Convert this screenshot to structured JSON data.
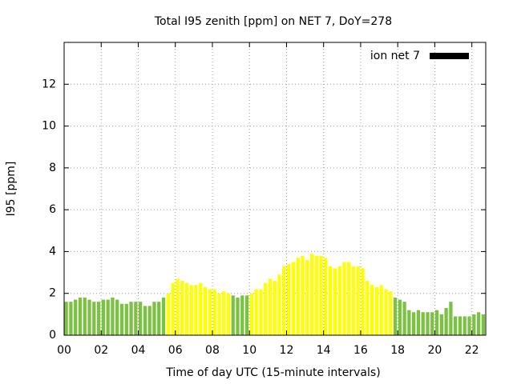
{
  "chart_data": {
    "type": "bar",
    "title": "Total I95 zenith [ppm] on NET 7, DoY=278",
    "xlabel": "Time of day UTC (15-minute intervals)",
    "ylabel": "I95 [ppm]",
    "series": [
      {
        "name": "ion net 7",
        "color": "#000000",
        "x": [
          0,
          0.25,
          0.5,
          0.75,
          1,
          1.25,
          1.5,
          1.75,
          2,
          2.25,
          2.5,
          2.75,
          3,
          3.25,
          3.5,
          3.75,
          4,
          4.25,
          4.5,
          4.75,
          5,
          5.25,
          5.5,
          5.75,
          6,
          6.25,
          6.5,
          6.75,
          7,
          7.25,
          7.5,
          7.75,
          8,
          8.25,
          8.5,
          8.75,
          9,
          9.25,
          9.5,
          9.75,
          10,
          10.25,
          10.5,
          10.75,
          11,
          11.25,
          11.5,
          11.75,
          12,
          12.25,
          12.5,
          12.75,
          13,
          13.25,
          13.5,
          13.75,
          14,
          14.25,
          14.5,
          14.75,
          15,
          15.25,
          15.5,
          15.75,
          16,
          16.25,
          16.5,
          16.75,
          17,
          17.25,
          17.5,
          17.75,
          18,
          18.25,
          18.5,
          18.75,
          19,
          19.25,
          19.5,
          19.75,
          20,
          20.25,
          20.5,
          20.75,
          21,
          21.25,
          21.5,
          21.75,
          22,
          22.25,
          22.5
        ],
        "values": [
          1.6,
          1.6,
          1.7,
          1.8,
          1.8,
          1.7,
          1.6,
          1.6,
          1.7,
          1.7,
          1.8,
          1.7,
          1.5,
          1.5,
          1.6,
          1.6,
          1.6,
          1.4,
          1.4,
          1.6,
          1.6,
          1.8,
          2.0,
          2.5,
          2.7,
          2.6,
          2.5,
          2.4,
          2.4,
          2.5,
          2.3,
          2.2,
          2.2,
          2.0,
          2.1,
          2.0,
          1.9,
          1.8,
          1.9,
          1.9,
          2.0,
          2.2,
          2.2,
          2.5,
          2.7,
          2.6,
          2.9,
          3.3,
          3.4,
          3.5,
          3.7,
          3.8,
          3.6,
          3.9,
          3.8,
          3.8,
          3.7,
          3.3,
          3.2,
          3.3,
          3.5,
          3.5,
          3.3,
          3.3,
          3.2,
          2.6,
          2.4,
          2.3,
          2.4,
          2.2,
          2.1,
          1.8,
          1.7,
          1.6,
          1.2,
          1.1,
          1.2,
          1.1,
          1.1,
          1.1,
          1.2,
          1.0,
          1.3,
          1.6,
          0.9,
          0.9,
          0.9,
          0.9,
          1.0,
          1.1,
          1.0
        ],
        "bar_colors": [
          "#7cc242",
          "#7cc242",
          "#7cc242",
          "#7cc242",
          "#7cc242",
          "#7cc242",
          "#7cc242",
          "#7cc242",
          "#7cc242",
          "#7cc242",
          "#7cc242",
          "#7cc242",
          "#7cc242",
          "#7cc242",
          "#7cc242",
          "#7cc242",
          "#7cc242",
          "#7cc242",
          "#7cc242",
          "#7cc242",
          "#7cc242",
          "#7cc242",
          "#ffff00",
          "#ffff00",
          "#ffff00",
          "#ffff00",
          "#ffff00",
          "#ffff00",
          "#ffff00",
          "#ffff00",
          "#ffff00",
          "#ffff00",
          "#ffff00",
          "#ffff00",
          "#ffff00",
          "#ffff00",
          "#7cc242",
          "#7cc242",
          "#7cc242",
          "#7cc242",
          "#ffff00",
          "#ffff00",
          "#ffff00",
          "#ffff00",
          "#ffff00",
          "#ffff00",
          "#ffff00",
          "#ffff00",
          "#ffff00",
          "#ffff00",
          "#ffff00",
          "#ffff00",
          "#ffff00",
          "#ffff00",
          "#ffff00",
          "#ffff00",
          "#ffff00",
          "#ffff00",
          "#ffff00",
          "#ffff00",
          "#ffff00",
          "#ffff00",
          "#ffff00",
          "#ffff00",
          "#ffff00",
          "#ffff00",
          "#ffff00",
          "#ffff00",
          "#ffff00",
          "#ffff00",
          "#ffff00",
          "#7cc242",
          "#7cc242",
          "#7cc242",
          "#7cc242",
          "#7cc242",
          "#7cc242",
          "#7cc242",
          "#7cc242",
          "#7cc242",
          "#7cc242",
          "#7cc242",
          "#7cc242",
          "#7cc242",
          "#7cc242",
          "#7cc242",
          "#7cc242",
          "#7cc242",
          "#7cc242",
          "#7cc242",
          "#7cc242"
        ]
      }
    ],
    "bar_width": 0.25,
    "xlim": [
      0,
      22.75
    ],
    "ylim": [
      0,
      14
    ],
    "xticks": [
      {
        "value": 0,
        "label": "00"
      },
      {
        "value": 2,
        "label": "02"
      },
      {
        "value": 4,
        "label": "04"
      },
      {
        "value": 6,
        "label": "06"
      },
      {
        "value": 8,
        "label": "08"
      },
      {
        "value": 10,
        "label": "10"
      },
      {
        "value": 12,
        "label": "12"
      },
      {
        "value": 14,
        "label": "14"
      },
      {
        "value": 16,
        "label": "16"
      },
      {
        "value": 18,
        "label": "18"
      },
      {
        "value": 20,
        "label": "20"
      },
      {
        "value": 22,
        "label": "22"
      }
    ],
    "yticks": [
      0,
      2,
      4,
      6,
      8,
      10,
      12
    ],
    "grid": true,
    "legend": "upper right"
  }
}
